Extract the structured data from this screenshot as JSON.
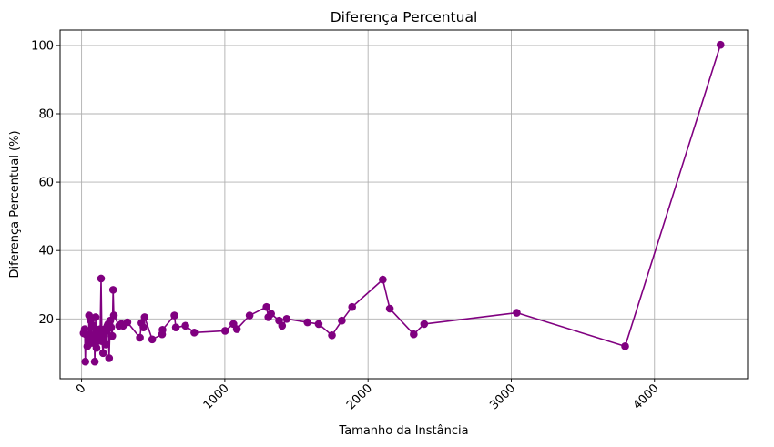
{
  "chart_data": {
    "type": "line",
    "title": "Diferença Percentual",
    "xlabel": "Tamanho da Instância",
    "ylabel": "Diferença Percentual (%)",
    "xlim": [
      -150,
      4650
    ],
    "ylim": [
      2.5,
      104.5
    ],
    "xticks": [
      0,
      1000,
      2000,
      3000,
      4000
    ],
    "xtick_labels": [
      "0",
      "1000",
      "2000",
      "3000",
      "4000"
    ],
    "xtick_rotation": 45,
    "yticks": [
      20,
      40,
      60,
      80,
      100
    ],
    "ytick_labels": [
      "20",
      "40",
      "60",
      "80",
      "100"
    ],
    "grid": true,
    "color": "#800080",
    "marker": "circle",
    "series": [
      {
        "x": [
          14,
          22,
          26,
          30,
          40,
          48,
          52,
          58,
          64,
          70,
          76,
          80,
          88,
          92,
          98,
          104,
          108,
          112,
          118,
          124,
          130,
          136,
          142,
          150,
          156,
          162,
          170,
          176,
          180,
          186,
          192,
          200,
          206,
          214,
          220,
          225,
          262,
          278,
          290,
          320,
          407,
          418,
          432,
          440,
          493,
          562,
          565,
          648,
          658,
          725,
          787,
          1002,
          1060,
          1084,
          1173,
          1291,
          1304,
          1323,
          1379,
          1400,
          1432,
          1577,
          1655,
          1748,
          1817,
          1889,
          2103,
          2152,
          2319,
          2392,
          3038,
          3795,
          4461
        ],
        "y": [
          15.8,
          17.0,
          7.5,
          15.5,
          12.0,
          12.5,
          21.0,
          14.0,
          19.5,
          15.0,
          13.0,
          18.0,
          17.5,
          7.5,
          20.5,
          11.5,
          16.0,
          13.5,
          14.5,
          15.5,
          17.0,
          31.8,
          13.5,
          10.0,
          15.0,
          17.0,
          12.5,
          16.5,
          18.0,
          18.5,
          8.5,
          19.5,
          17.5,
          15.0,
          28.5,
          21.0,
          18.0,
          18.5,
          18.0,
          19.0,
          14.5,
          18.8,
          17.5,
          20.5,
          14.0,
          15.5,
          16.8,
          21.0,
          17.5,
          18.0,
          16.0,
          16.5,
          18.5,
          17.0,
          21.0,
          23.5,
          20.5,
          21.5,
          19.5,
          18.0,
          20.0,
          19.0,
          18.5,
          15.2,
          19.5,
          23.5,
          31.5,
          23.0,
          15.5,
          18.5,
          21.8,
          12.0,
          100.2
        ]
      }
    ]
  }
}
